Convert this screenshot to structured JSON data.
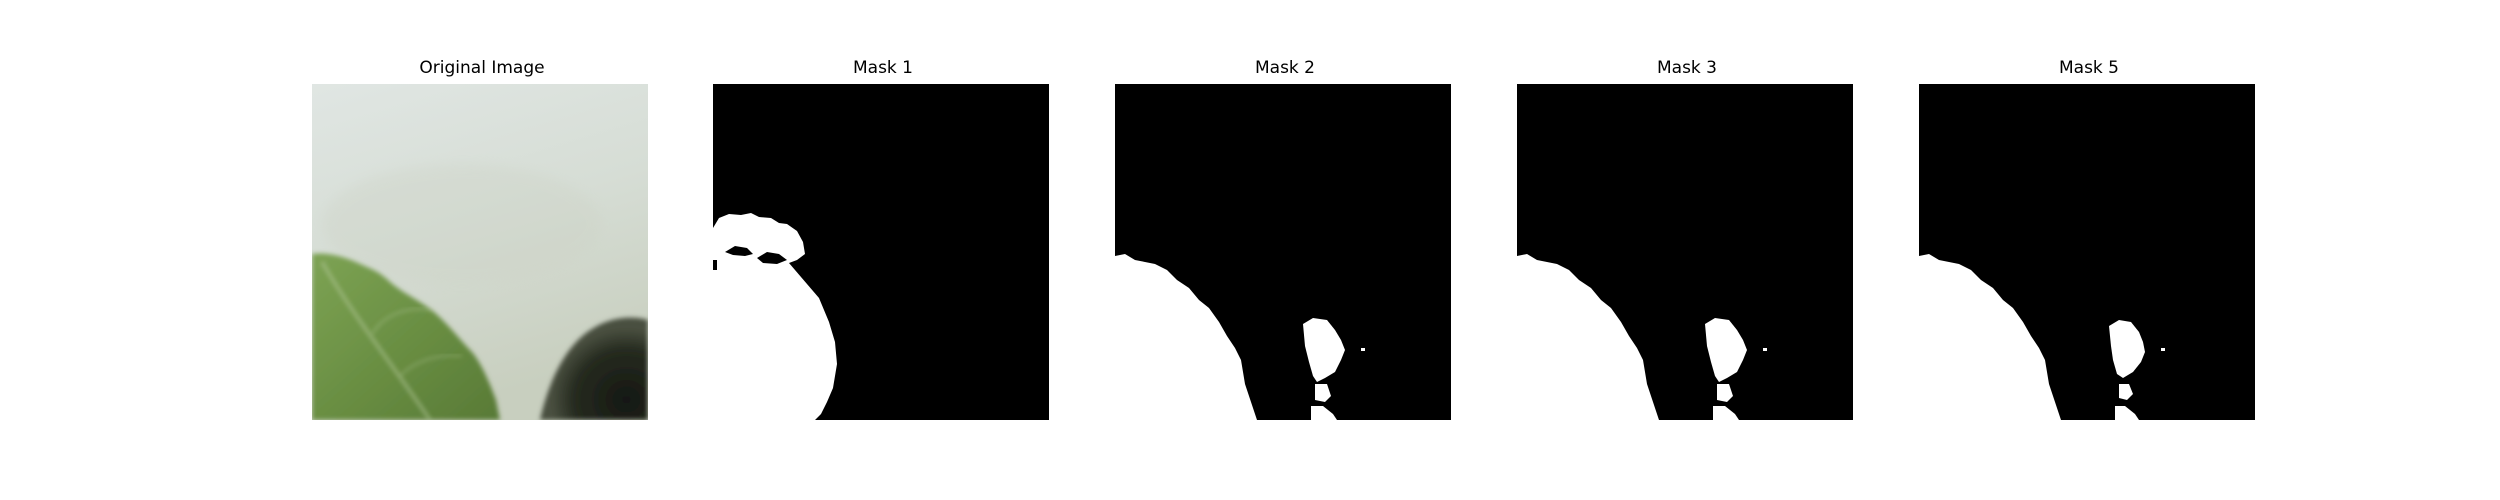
{
  "figure": {
    "panels": [
      {
        "title": "Original Image",
        "kind": "photo"
      },
      {
        "title": "Mask 1",
        "kind": "mask"
      },
      {
        "title": "Mask 2",
        "kind": "mask"
      },
      {
        "title": "Mask 3",
        "kind": "mask"
      },
      {
        "title": "Mask 5",
        "kind": "mask"
      }
    ]
  },
  "colors": {
    "mask_background": "#000000",
    "mask_foreground": "#ffffff",
    "photo_sky_top": "#dfe5e2",
    "photo_sky_bottom": "#c9d0c2",
    "leaf_green": "#6a8f43",
    "leaf_vein": "#b9cda0",
    "dark_object": "#1e2219"
  }
}
